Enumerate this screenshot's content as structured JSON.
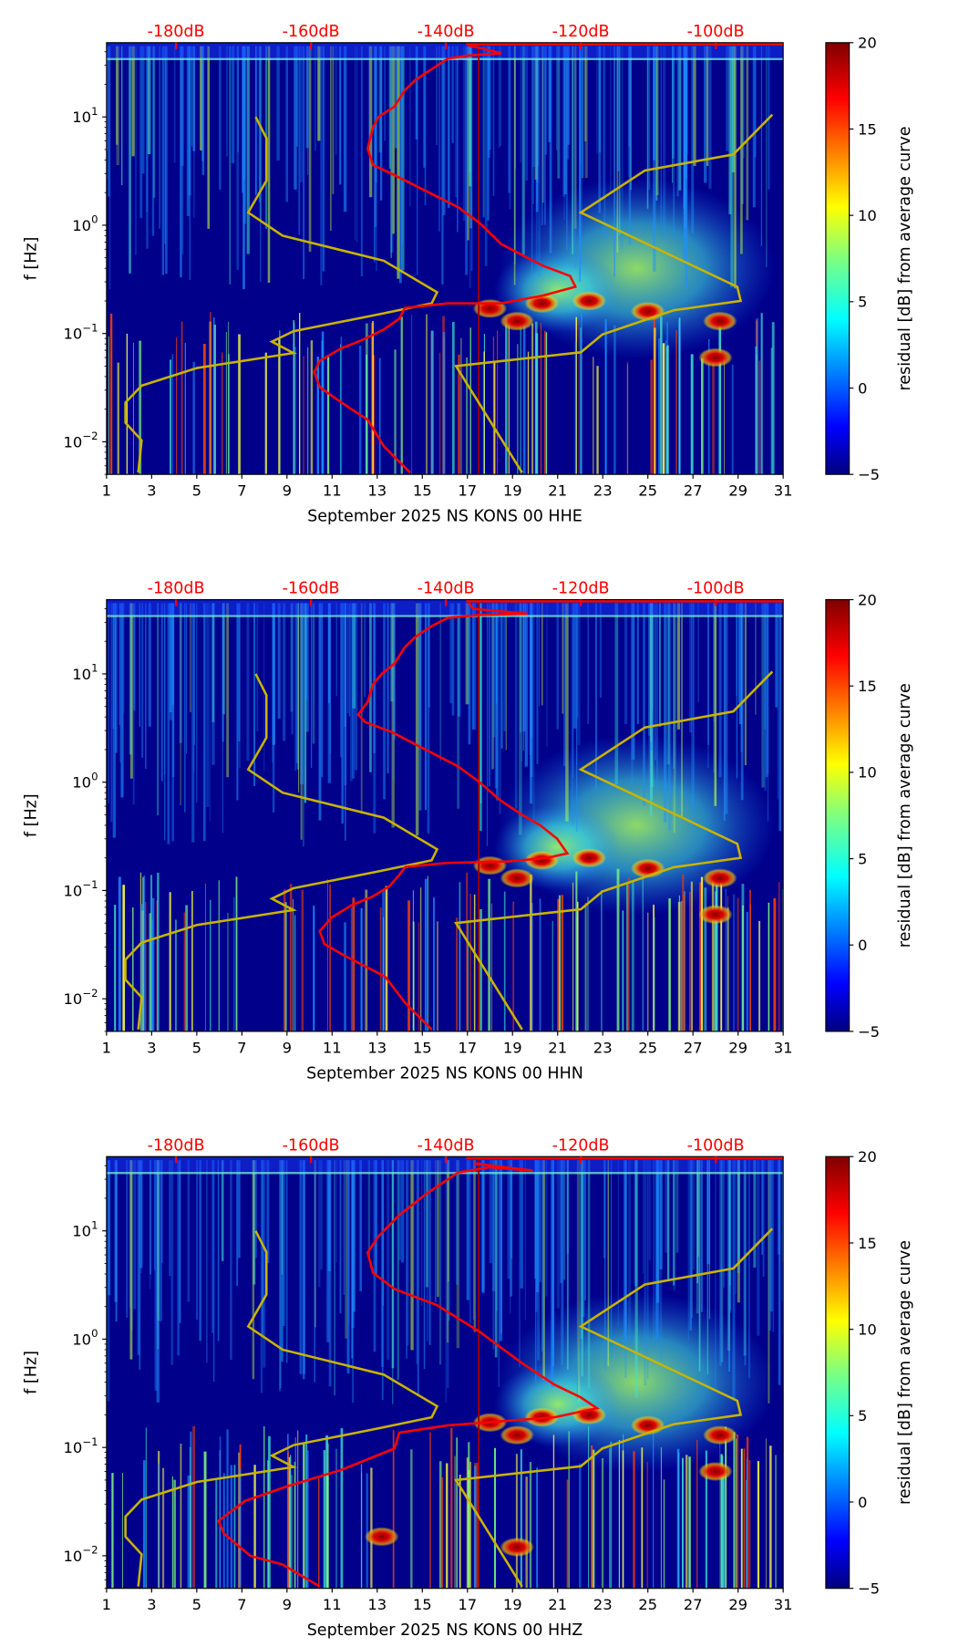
{
  "colors": {
    "red_curve": "#ff0000",
    "model_curve": "#c8b400",
    "background": "#00008b"
  },
  "chart_data": [
    {
      "type": "heatmap",
      "xlabel": "September 2025 NS KONS 00 HHE",
      "ylabel": "f [Hz]",
      "colorbar_label": "residual [dB] from average curve",
      "x_ticks": [
        "1",
        "3",
        "5",
        "7",
        "9",
        "11",
        "13",
        "15",
        "17",
        "19",
        "21",
        "23",
        "25",
        "27",
        "29",
        "31"
      ],
      "xlim": [
        1,
        31
      ],
      "ylim": [
        0.005,
        48.5
      ],
      "y_ticks": [
        {
          "base": "10",
          "exp": "1",
          "value": 10
        },
        {
          "base": "10",
          "exp": "0",
          "value": 1
        },
        {
          "base": "10",
          "exp": "−1",
          "value": 0.1
        },
        {
          "base": "10",
          "exp": "−2",
          "value": 0.01
        }
      ],
      "top_ticks": [
        "-180dB",
        "-160dB",
        "-140dB",
        "-120dB",
        "-100dB"
      ],
      "top_tick_values": [
        -180,
        -160,
        -140,
        -120,
        -100
      ],
      "top_xlim_db": [
        -190.3,
        -90
      ],
      "colorbar_ticks": [
        "−5",
        "0",
        "5",
        "10",
        "15",
        "20"
      ],
      "colorbar_range": [
        -5,
        20
      ],
      "psd_curve_db_hz": [
        [
          -145.3,
          0.0052
        ],
        [
          -149.2,
          0.0091
        ],
        [
          -151.6,
          0.016
        ],
        [
          -154,
          0.02
        ],
        [
          -156.3,
          0.025
        ],
        [
          -158.7,
          0.032
        ],
        [
          -159.5,
          0.044
        ],
        [
          -158.7,
          0.056
        ],
        [
          -155.5,
          0.073
        ],
        [
          -152.4,
          0.087
        ],
        [
          -149.2,
          0.109
        ],
        [
          -146.9,
          0.137
        ],
        [
          -146.1,
          0.172
        ],
        [
          -139.7,
          0.19
        ],
        [
          -131.8,
          0.19
        ],
        [
          -125.5,
          0.225
        ],
        [
          -120.8,
          0.27
        ],
        [
          -121.6,
          0.34
        ],
        [
          -125.5,
          0.42
        ],
        [
          -127.1,
          0.47
        ],
        [
          -128.7,
          0.53
        ],
        [
          -131.8,
          0.67
        ],
        [
          -135,
          1.05
        ],
        [
          -138.2,
          1.47
        ],
        [
          -142.9,
          2.06
        ],
        [
          -147.6,
          2.9
        ],
        [
          -150.8,
          3.6
        ],
        [
          -151.6,
          5.1
        ],
        [
          -150.8,
          8.0
        ],
        [
          -150,
          10
        ],
        [
          -147.6,
          12.5
        ],
        [
          -146.1,
          17.6
        ],
        [
          -144.5,
          22
        ],
        [
          -142.1,
          27.6
        ],
        [
          -139.7,
          34.6
        ],
        [
          -136.6,
          37
        ],
        [
          -131.8,
          38.7
        ],
        [
          -135,
          43.4
        ],
        [
          -136.6,
          45.4
        ]
      ],
      "hotspots_day_hz": [
        [
          19.2,
          0.13
        ],
        [
          28.2,
          0.13
        ],
        [
          28,
          0.06
        ],
        [
          25,
          0.16
        ],
        [
          20.3,
          0.19
        ],
        [
          18,
          0.17
        ],
        [
          22.4,
          0.2
        ]
      ]
    },
    {
      "type": "heatmap",
      "xlabel": "September 2025 NS KONS 00 HHN",
      "ylabel": "f [Hz]",
      "colorbar_label": "residual [dB] from average curve",
      "x_ticks": [
        "1",
        "3",
        "5",
        "7",
        "9",
        "11",
        "13",
        "15",
        "17",
        "19",
        "21",
        "23",
        "25",
        "27",
        "29",
        "31"
      ],
      "xlim": [
        1,
        31
      ],
      "ylim": [
        0.005,
        48.5
      ],
      "y_ticks": [
        {
          "base": "10",
          "exp": "1",
          "value": 10
        },
        {
          "base": "10",
          "exp": "0",
          "value": 1
        },
        {
          "base": "10",
          "exp": "−1",
          "value": 0.1
        },
        {
          "base": "10",
          "exp": "−2",
          "value": 0.01
        }
      ],
      "top_ticks": [
        "-180dB",
        "-160dB",
        "-140dB",
        "-120dB",
        "-100dB"
      ],
      "top_tick_values": [
        -180,
        -160,
        -140,
        -120,
        -100
      ],
      "top_xlim_db": [
        -190.3,
        -90
      ],
      "colorbar_ticks": [
        "−5",
        "0",
        "5",
        "10",
        "15",
        "20"
      ],
      "colorbar_range": [
        -5,
        20
      ],
      "psd_curve_db_hz": [
        [
          -142.1,
          0.0052
        ],
        [
          -146,
          0.0091
        ],
        [
          -149,
          0.016
        ],
        [
          -152,
          0.02
        ],
        [
          -155,
          0.025
        ],
        [
          -158,
          0.032
        ],
        [
          -158.7,
          0.042
        ],
        [
          -157,
          0.056
        ],
        [
          -154,
          0.073
        ],
        [
          -151,
          0.087
        ],
        [
          -148.4,
          0.109
        ],
        [
          -147,
          0.137
        ],
        [
          -146,
          0.165
        ],
        [
          -139.7,
          0.18
        ],
        [
          -131,
          0.185
        ],
        [
          -125,
          0.2
        ],
        [
          -122,
          0.22
        ],
        [
          -123.5,
          0.3
        ],
        [
          -126,
          0.4
        ],
        [
          -128.7,
          0.5
        ],
        [
          -131.8,
          0.67
        ],
        [
          -135,
          1.0
        ],
        [
          -138.2,
          1.4
        ],
        [
          -143,
          2.0
        ],
        [
          -148,
          2.9
        ],
        [
          -152,
          3.6
        ],
        [
          -153,
          4.2
        ],
        [
          -151.6,
          5.5
        ],
        [
          -150.8,
          8.0
        ],
        [
          -149.5,
          10
        ],
        [
          -147.6,
          12.5
        ],
        [
          -146.1,
          17.6
        ],
        [
          -144.5,
          22
        ],
        [
          -142.1,
          27.6
        ],
        [
          -139.7,
          33
        ],
        [
          -135,
          35
        ],
        [
          -128,
          36
        ],
        [
          -136,
          40
        ],
        [
          -136.6,
          45.4
        ]
      ],
      "hotspots_day_hz": [
        [
          19.2,
          0.13
        ],
        [
          28.2,
          0.13
        ],
        [
          28,
          0.06
        ],
        [
          25,
          0.16
        ],
        [
          20.3,
          0.19
        ],
        [
          18,
          0.17
        ],
        [
          22.4,
          0.2
        ]
      ]
    },
    {
      "type": "heatmap",
      "xlabel": "September 2025 NS KONS 00 HHZ",
      "ylabel": "f [Hz]",
      "colorbar_label": "residual [dB] from average curve",
      "x_ticks": [
        "1",
        "3",
        "5",
        "7",
        "9",
        "11",
        "13",
        "15",
        "17",
        "19",
        "21",
        "23",
        "25",
        "27",
        "29",
        "31"
      ],
      "xlim": [
        1,
        31
      ],
      "ylim": [
        0.005,
        48.5
      ],
      "y_ticks": [
        {
          "base": "10",
          "exp": "1",
          "value": 10
        },
        {
          "base": "10",
          "exp": "0",
          "value": 1
        },
        {
          "base": "10",
          "exp": "−1",
          "value": 0.1
        },
        {
          "base": "10",
          "exp": "−2",
          "value": 0.01
        }
      ],
      "top_ticks": [
        "-180dB",
        "-160dB",
        "-140dB",
        "-120dB",
        "-100dB"
      ],
      "top_tick_values": [
        -180,
        -160,
        -140,
        -120,
        -100
      ],
      "top_xlim_db": [
        -190.3,
        -90
      ],
      "colorbar_ticks": [
        "−5",
        "0",
        "5",
        "10",
        "15",
        "20"
      ],
      "colorbar_range": [
        -5,
        20
      ],
      "psd_curve_db_hz": [
        [
          -158.7,
          0.0052
        ],
        [
          -164.2,
          0.0083
        ],
        [
          -169,
          0.01
        ],
        [
          -172.9,
          0.016
        ],
        [
          -173.7,
          0.021
        ],
        [
          -169.8,
          0.032
        ],
        [
          -163.4,
          0.044
        ],
        [
          -155.5,
          0.062
        ],
        [
          -147.6,
          0.098
        ],
        [
          -146.9,
          0.137
        ],
        [
          -139.7,
          0.16
        ],
        [
          -123.9,
          0.19
        ],
        [
          -117.6,
          0.23
        ],
        [
          -120,
          0.29
        ],
        [
          -123.9,
          0.38
        ],
        [
          -128.7,
          0.6
        ],
        [
          -135,
          1.17
        ],
        [
          -141.3,
          2.06
        ],
        [
          -147.6,
          2.9
        ],
        [
          -150.8,
          4.1
        ],
        [
          -151.6,
          6.3
        ],
        [
          -150,
          8.9
        ],
        [
          -146.9,
          14
        ],
        [
          -142.9,
          22
        ],
        [
          -138.2,
          34.6
        ],
        [
          -133.5,
          38.7
        ],
        [
          -127.1,
          36
        ],
        [
          -135.8,
          42
        ]
      ],
      "hotspots_day_hz": [
        [
          19.2,
          0.13
        ],
        [
          28.2,
          0.13
        ],
        [
          28,
          0.06
        ],
        [
          25,
          0.16
        ],
        [
          20.3,
          0.19
        ],
        [
          18,
          0.17
        ],
        [
          22.4,
          0.2
        ],
        [
          13.2,
          0.015
        ],
        [
          19.2,
          0.012
        ]
      ]
    }
  ],
  "model_curves": {
    "low_noise_db_hz": [
      [
        -168.2,
        10
      ],
      [
        -166.6,
        6.36
      ],
      [
        -166.6,
        2.58
      ],
      [
        -169.3,
        1.31
      ],
      [
        -164.2,
        0.8
      ],
      [
        -149.2,
        0.47
      ],
      [
        -141.3,
        0.24
      ],
      [
        -142.1,
        0.19
      ],
      [
        -150,
        0.15
      ],
      [
        -162.6,
        0.105
      ],
      [
        -165.8,
        0.084
      ],
      [
        -162.6,
        0.066
      ],
      [
        -176.9,
        0.048
      ],
      [
        -185.1,
        0.033
      ],
      [
        -187.5,
        0.023
      ],
      [
        -187.5,
        0.015
      ],
      [
        -185.1,
        0.0103
      ],
      [
        -185.6,
        0.0052
      ]
    ],
    "high_noise_db_hz": [
      [
        -91.6,
        10.5
      ],
      [
        -97.4,
        4.5
      ],
      [
        -110.5,
        3.2
      ],
      [
        -120,
        1.31
      ],
      [
        -96.8,
        0.27
      ],
      [
        -96.3,
        0.2
      ],
      [
        -106.2,
        0.164
      ],
      [
        -116.8,
        0.098
      ],
      [
        -120,
        0.067
      ],
      [
        -138.5,
        0.05
      ],
      [
        -128.7,
        0.0052
      ]
    ]
  }
}
